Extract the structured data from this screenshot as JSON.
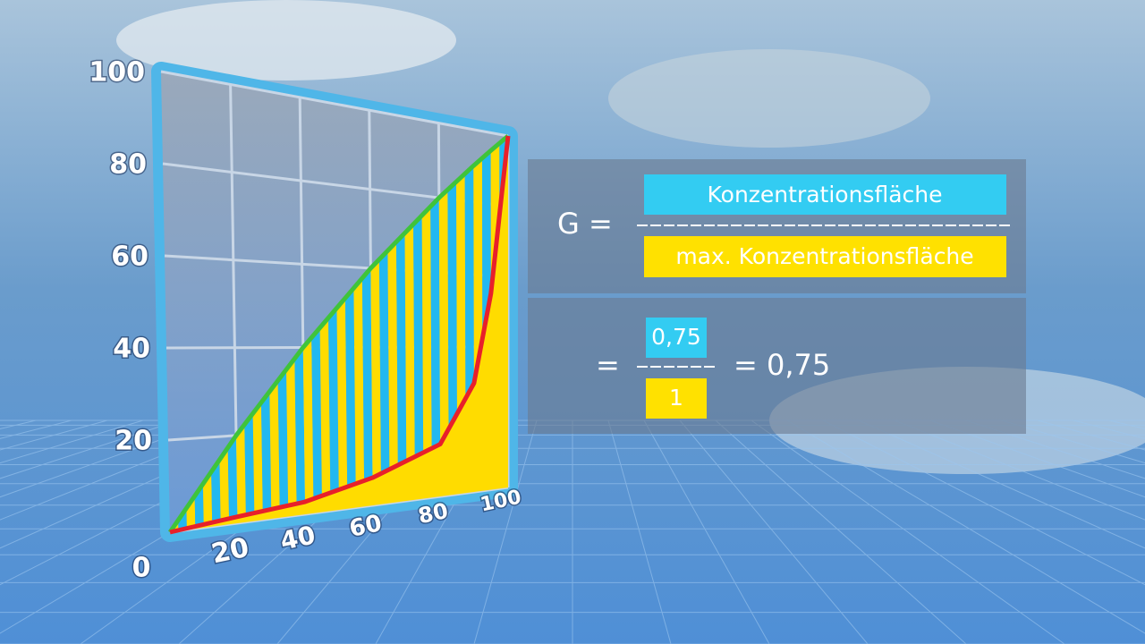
{
  "chart_data": {
    "type": "line",
    "x": [
      0,
      20,
      40,
      60,
      80,
      90,
      95,
      100
    ],
    "series": [
      {
        "color": "#3fc43a",
        "values": [
          0,
          20,
          40,
          60,
          80,
          90,
          95,
          100
        ]
      },
      {
        "color": "#e8202a",
        "values": [
          0,
          1.5,
          3,
          7,
          14,
          30,
          55,
          100
        ]
      }
    ],
    "xlim": [
      0,
      100
    ],
    "ylim": [
      0,
      100
    ],
    "xticks": [
      20,
      40,
      60,
      80,
      100
    ],
    "yticks": [
      0,
      20,
      40,
      60,
      80,
      100
    ],
    "grid": true
  },
  "formula": {
    "lhs": "G =",
    "numerator": "Konzentrationsfläche",
    "denominator": "max. Konzentrationsfläche",
    "eq": "=",
    "num_value": "0,75",
    "den_value": "1",
    "result": "= 0,75"
  }
}
